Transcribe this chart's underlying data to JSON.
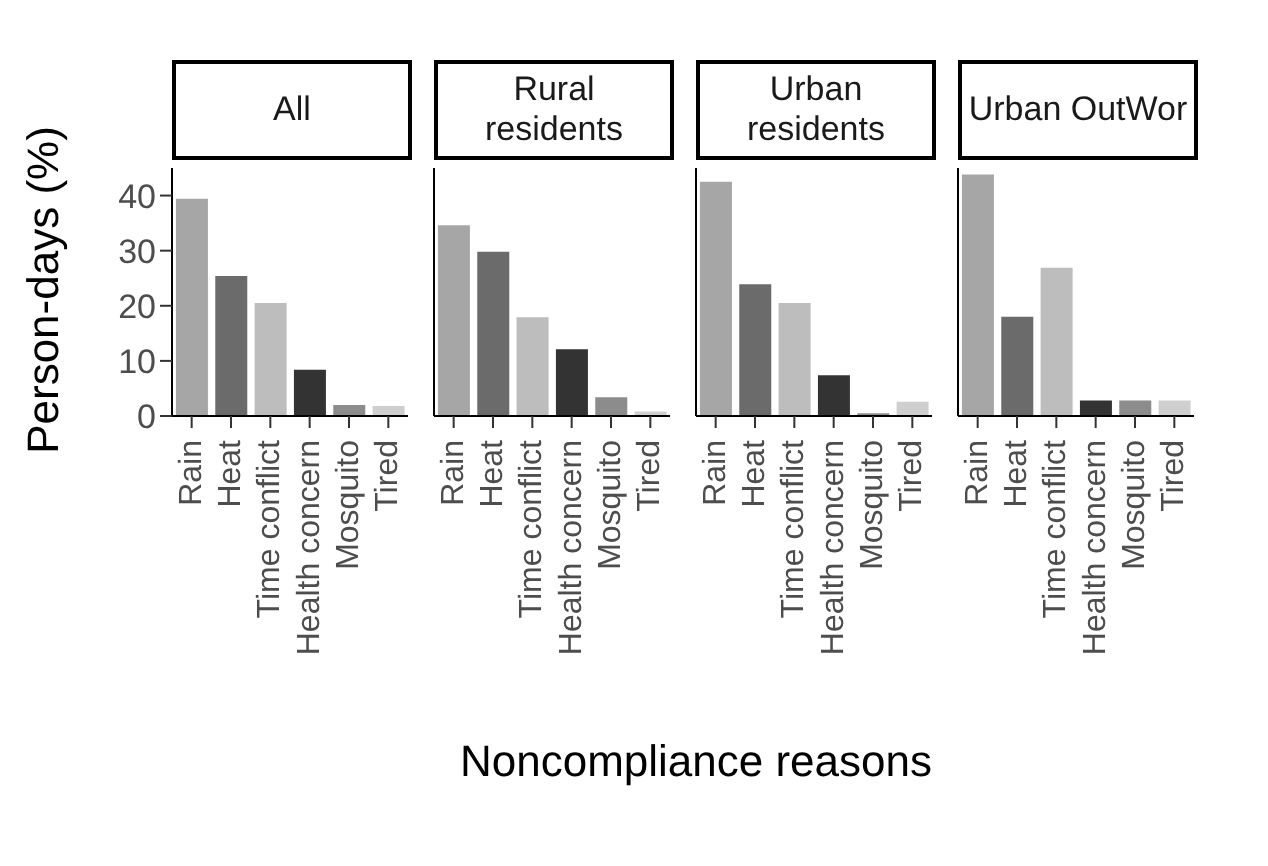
{
  "chart_data": [
    {
      "type": "bar",
      "title": "All",
      "ylabel": "Person-days (%)",
      "xlabel": "Noncompliance reasons",
      "categories": [
        "Rain",
        "Heat",
        "Time conflict",
        "Health concern",
        "Mosquito",
        "Tired"
      ],
      "values": [
        39.4,
        25.4,
        20.5,
        8.4,
        2,
        1.8
      ],
      "colors": [
        "#a6a6a6",
        "#6b6b6b",
        "#bdbdbd",
        "#333333",
        "#8c8c8c",
        "#cfcfcf"
      ],
      "ylim": [
        0,
        45
      ],
      "yticks": [
        0,
        10,
        20,
        30,
        40
      ]
    },
    {
      "type": "bar",
      "title": "Rural residents",
      "categories": [
        "Rain",
        "Heat",
        "Time conflict",
        "Health concern",
        "Mosquito",
        "Tired"
      ],
      "values": [
        34.6,
        29.8,
        17.9,
        12.1,
        3.4,
        0.8
      ],
      "colors": [
        "#a6a6a6",
        "#6b6b6b",
        "#bdbdbd",
        "#333333",
        "#8c8c8c",
        "#cfcfcf"
      ],
      "ylim": [
        0,
        45
      ],
      "yticks": [
        0,
        10,
        20,
        30,
        40
      ],
      "tick_labels": "x"
    },
    {
      "type": "bar",
      "title": "Urban residents",
      "categories": [
        "Rain",
        "Heat",
        "Time conflict",
        "Health concern",
        "Mosquito",
        "Tired"
      ],
      "values": [
        42.5,
        23.9,
        20.5,
        7.4,
        0.5,
        2.6
      ],
      "colors": [
        "#a6a6a6",
        "#6b6b6b",
        "#bdbdbd",
        "#333333",
        "#8c8c8c",
        "#cfcfcf"
      ],
      "ylim": [
        0,
        45
      ],
      "yticks": [
        0,
        10,
        20,
        30,
        40
      ],
      "tick_labels": "x"
    },
    {
      "type": "bar",
      "title": "Urban OutWor",
      "categories": [
        "Rain",
        "Heat",
        "Time conflict",
        "Health concern",
        "Mosquito",
        "Tired"
      ],
      "values": [
        43.8,
        18,
        26.9,
        2.8,
        2.8,
        2.8
      ],
      "colors": [
        "#a6a6a6",
        "#6b6b6b",
        "#bdbdbd",
        "#333333",
        "#8c8c8c",
        "#cfcfcf"
      ],
      "ylim": [
        0,
        45
      ],
      "yticks": [
        0,
        10,
        20,
        30,
        40
      ],
      "tick_labels": "x"
    }
  ]
}
